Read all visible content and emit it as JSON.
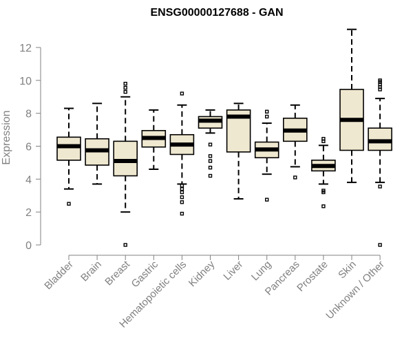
{
  "chart_data": {
    "type": "box",
    "title": "ENSG00000127688 - GAN",
    "xlabel": "",
    "ylabel": "Expression",
    "ylim": [
      0,
      13
    ],
    "yticks": [
      0,
      2,
      4,
      6,
      8,
      10,
      12
    ],
    "box_fill": "#efe8d0",
    "axis_color": "#808080",
    "categories": [
      "Bladder",
      "Brain",
      "Breast",
      "Gastric",
      "Hematopoietic cells",
      "Kidney",
      "Liver",
      "Lung",
      "Pancreas",
      "Prostate",
      "Skin",
      "Unknown / Other"
    ],
    "boxes": [
      {
        "name": "Bladder",
        "whisker_low": 3.4,
        "q1": 5.15,
        "median": 6.0,
        "q3": 6.55,
        "whisker_high": 8.3,
        "outliers": [
          2.5
        ]
      },
      {
        "name": "Brain",
        "whisker_low": 3.7,
        "q1": 4.85,
        "median": 5.75,
        "q3": 6.45,
        "whisker_high": 8.6,
        "outliers": []
      },
      {
        "name": "Breast",
        "whisker_low": 2.0,
        "q1": 4.2,
        "median": 5.1,
        "q3": 6.3,
        "whisker_high": 9.0,
        "outliers": [
          0.0,
          9.3,
          9.55,
          9.8
        ]
      },
      {
        "name": "Gastric",
        "whisker_low": 4.6,
        "q1": 5.95,
        "median": 6.5,
        "q3": 6.95,
        "whisker_high": 8.2,
        "outliers": []
      },
      {
        "name": "Hematopoietic cells",
        "whisker_low": 3.7,
        "q1": 5.5,
        "median": 6.1,
        "q3": 6.7,
        "whisker_high": 8.5,
        "outliers": [
          1.9,
          2.6,
          2.9,
          3.2,
          3.4,
          3.6,
          9.2
        ]
      },
      {
        "name": "Kidney",
        "whisker_low": 6.8,
        "q1": 7.1,
        "median": 7.55,
        "q3": 7.8,
        "whisker_high": 8.2,
        "outliers": [
          4.2,
          4.7,
          5.1,
          5.4,
          6.1
        ]
      },
      {
        "name": "Liver",
        "whisker_low": 2.8,
        "q1": 5.65,
        "median": 7.8,
        "q3": 8.2,
        "whisker_high": 8.6,
        "outliers": []
      },
      {
        "name": "Lung",
        "whisker_low": 4.3,
        "q1": 5.3,
        "median": 5.8,
        "q3": 6.25,
        "whisker_high": 7.4,
        "outliers": [
          2.75,
          7.8,
          8.1
        ]
      },
      {
        "name": "Pancreas",
        "whisker_low": 4.75,
        "q1": 6.3,
        "median": 6.95,
        "q3": 7.7,
        "whisker_high": 8.5,
        "outliers": [
          4.1
        ]
      },
      {
        "name": "Prostate",
        "whisker_low": 3.7,
        "q1": 4.5,
        "median": 4.8,
        "q3": 5.15,
        "whisker_high": 6.05,
        "outliers": [
          2.35,
          3.2,
          3.3,
          6.3,
          6.45
        ]
      },
      {
        "name": "Skin",
        "whisker_low": 3.8,
        "q1": 5.75,
        "median": 7.6,
        "q3": 9.45,
        "whisker_high": 13.1,
        "outliers": []
      },
      {
        "name": "Unknown / Other",
        "whisker_low": 3.8,
        "q1": 5.75,
        "median": 6.3,
        "q3": 7.1,
        "whisker_high": 8.9,
        "outliers": [
          0.0,
          3.55,
          9.45,
          9.6,
          9.75,
          9.9,
          10.0
        ]
      }
    ]
  }
}
